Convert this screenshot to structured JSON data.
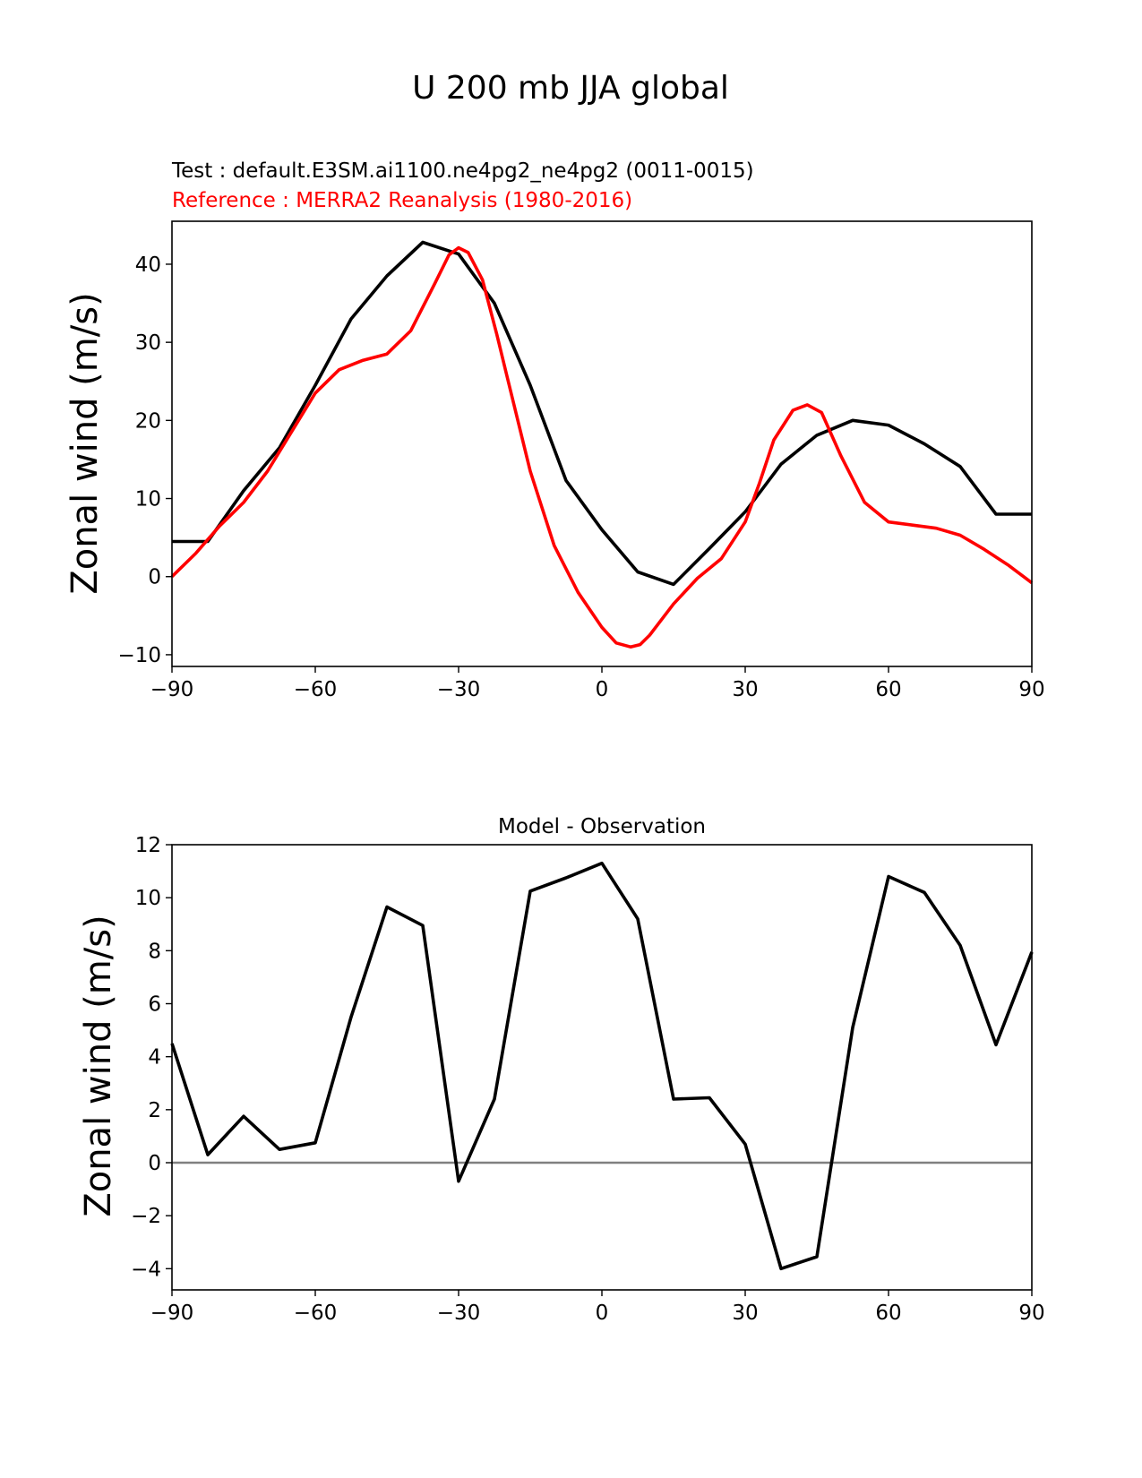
{
  "figure": {
    "title": "U 200 mb JJA global"
  },
  "colors": {
    "test": "#000000",
    "reference": "#ff0000",
    "zero_line": "#808080"
  },
  "chart_data": [
    {
      "type": "line",
      "title_lines": [
        "Test : default.E3SM.ai1100.ne4pg2_ne4pg2 (0011-0015)",
        "Reference : MERRA2 Reanalysis (1980-2016)"
      ],
      "xlabel": "",
      "ylabel": "Zonal wind (m/s)",
      "xlim": [
        -90,
        90
      ],
      "ylim": [
        -11.5,
        45.5
      ],
      "xticks": [
        -90,
        -60,
        -30,
        0,
        30,
        60,
        90
      ],
      "xtick_labels": [
        "−90",
        "−60",
        "−30",
        "0",
        "30",
        "60",
        "90"
      ],
      "yticks": [
        -10,
        0,
        10,
        20,
        30,
        40
      ],
      "ytick_labels": [
        "−10",
        "0",
        "10",
        "20",
        "30",
        "40"
      ],
      "series": [
        {
          "name": "Test",
          "x": [
            -90,
            -82.5,
            -75,
            -67.5,
            -60,
            -52.5,
            -45,
            -37.5,
            -30,
            -22.5,
            -15,
            -7.5,
            0,
            7.5,
            15,
            22.5,
            30,
            37.5,
            45,
            52.5,
            60,
            67.5,
            75,
            82.5,
            90
          ],
          "values": [
            4.5,
            4.5,
            11,
            16.5,
            24.5,
            33,
            38.5,
            42.8,
            41.3,
            35,
            24.5,
            12.3,
            6,
            0.6,
            -1,
            3.6,
            8.3,
            14.4,
            18.1,
            20,
            19.4,
            17,
            14.1,
            8,
            8
          ]
        },
        {
          "name": "Reference",
          "x": [
            -90,
            -85,
            -80,
            -75,
            -70,
            -65,
            -60,
            -55,
            -50,
            -45,
            -40,
            -35,
            -32,
            -30,
            -28,
            -25,
            -22,
            -20,
            -15,
            -10,
            -5,
            0,
            3,
            6,
            8,
            10,
            15,
            20,
            25,
            30,
            33,
            36,
            40,
            43,
            46,
            50,
            55,
            60,
            65,
            70,
            75,
            80,
            85,
            90
          ],
          "values": [
            0,
            3,
            6.5,
            9.5,
            13.5,
            18.5,
            23.5,
            26.5,
            27.7,
            28.5,
            31.5,
            37.5,
            41.2,
            42.1,
            41.5,
            38,
            31,
            26,
            13.5,
            4,
            -2,
            -6.5,
            -8.5,
            -9,
            -8.7,
            -7.5,
            -3.5,
            -0.2,
            2.3,
            7,
            12,
            17.5,
            21.3,
            22,
            21,
            15.5,
            9.5,
            7,
            6.6,
            6.2,
            5.3,
            3.5,
            1.5,
            -0.8
          ]
        }
      ]
    },
    {
      "type": "line",
      "title": "Model - Observation",
      "xlabel": "",
      "ylabel": "Zonal wind (m/s)",
      "xlim": [
        -90,
        90
      ],
      "ylim": [
        -4.8,
        12
      ],
      "xticks": [
        -90,
        -60,
        -30,
        0,
        30,
        60,
        90
      ],
      "xtick_labels": [
        "−90",
        "−60",
        "−30",
        "0",
        "30",
        "60",
        "90"
      ],
      "yticks": [
        -4,
        -2,
        0,
        2,
        4,
        6,
        8,
        10,
        12
      ],
      "ytick_labels": [
        "−4",
        "−2",
        "0",
        "2",
        "4",
        "6",
        "8",
        "10",
        "12"
      ],
      "zero_line": 0,
      "series": [
        {
          "name": "Model - Observation",
          "x": [
            -90,
            -82.5,
            -75,
            -67.5,
            -60,
            -52.5,
            -45,
            -37.5,
            -30,
            -22.5,
            -15,
            -7.5,
            0,
            7.5,
            15,
            22.5,
            30,
            37.5,
            45,
            52.5,
            60,
            67.5,
            75,
            82.5,
            90
          ],
          "values": [
            4.5,
            0.3,
            1.75,
            0.5,
            0.75,
            5.5,
            9.65,
            8.95,
            -0.7,
            2.4,
            10.25,
            10.75,
            11.3,
            9.2,
            2.4,
            2.45,
            0.7,
            -4,
            -3.55,
            5.1,
            10.8,
            10.2,
            8.2,
            4.45,
            7.95
          ]
        }
      ]
    }
  ]
}
